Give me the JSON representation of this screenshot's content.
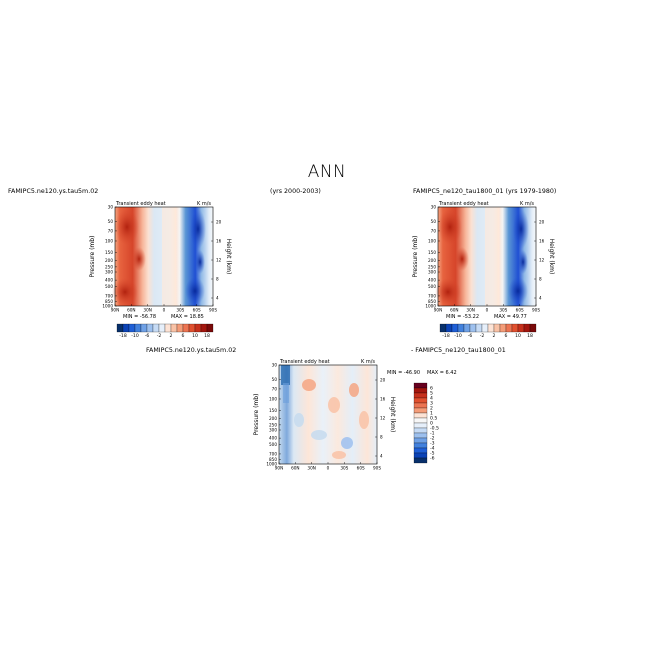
{
  "figure": {
    "title": "ANN",
    "top_left_case": "FAMIPC5.ne120.ys.tau5m.02",
    "top_mid_years": "(yrs 2000-2003)",
    "top_right_case": "FAMIPC5_ne120_tau1800_01 (yrs 1979-1980)",
    "bottom_caption_left": "FAMIPC5.ne120.ys.tau5m.02",
    "bottom_caption_right": "- FAMIPC5_ne120_tau1800_01"
  },
  "colors": {
    "cold_dark": "#08306b",
    "cold": "#2166ac",
    "cold_light": "#d1e5f0",
    "warm_light": "#fddbc7",
    "warm": "#d6604d",
    "warm_dark": "#67001f"
  },
  "chart_data": [
    {
      "type": "heatmap",
      "panel": "top-left",
      "subtitle_left": "Transient eddy heat",
      "subtitle_right": "K m/s",
      "ylabel": "Pressure (mb)",
      "ylabel_right": "Height (km)",
      "x_ticks": [
        "90N",
        "60N",
        "30N",
        "0",
        "30S",
        "60S",
        "90S"
      ],
      "y_ticks": [
        "30",
        "50",
        "70",
        "100",
        "150",
        "200",
        "250",
        "300",
        "400",
        "500",
        "700",
        "850",
        "1000"
      ],
      "height_ticks": [
        "20",
        "16",
        "12",
        "8",
        "4"
      ],
      "colorbar_labels": [
        "-18",
        "-10",
        "-6",
        "-2",
        "2",
        "6",
        "10",
        "18"
      ],
      "stats": {
        "min_label": "MIN = -56.78",
        "max_label": "MAX = 18.85"
      }
    },
    {
      "type": "heatmap",
      "panel": "top-right",
      "subtitle_left": "Transient eddy heat",
      "subtitle_right": "K m/s",
      "ylabel": "Pressure (mb)",
      "ylabel_right": "Height (km)",
      "x_ticks": [
        "90N",
        "60N",
        "30N",
        "0",
        "30S",
        "60S",
        "90S"
      ],
      "y_ticks": [
        "30",
        "50",
        "70",
        "100",
        "150",
        "200",
        "250",
        "300",
        "400",
        "500",
        "700",
        "850",
        "1000"
      ],
      "height_ticks": [
        "20",
        "16",
        "12",
        "8",
        "4"
      ],
      "colorbar_labels": [
        "-18",
        "-10",
        "-6",
        "-2",
        "2",
        "6",
        "10",
        "18"
      ],
      "stats": {
        "min_label": "MIN = -53.22",
        "max_label": "MAX = 49.77"
      }
    },
    {
      "type": "heatmap",
      "panel": "bottom-difference",
      "subtitle_left": "Transient eddy heat",
      "subtitle_right": "K m/s",
      "ylabel": "Pressure (mb)",
      "ylabel_right": "Height (km)",
      "x_ticks": [
        "90N",
        "60N",
        "30N",
        "0",
        "30S",
        "60S",
        "90S"
      ],
      "y_ticks": [
        "30",
        "50",
        "70",
        "100",
        "150",
        "200",
        "250",
        "300",
        "400",
        "500",
        "700",
        "850",
        "1000"
      ],
      "height_ticks": [
        "20",
        "16",
        "12",
        "8",
        "4"
      ],
      "colorbar_labels": [
        "6",
        "5",
        "4",
        "3",
        "2",
        "1",
        "0.5",
        "0",
        "-0.5",
        "-1",
        "-2",
        "-3",
        "-4",
        "-5",
        "-6"
      ],
      "stats": {
        "min_label": "MIN = -46.90",
        "max_label": "MAX = 6.42"
      }
    }
  ]
}
